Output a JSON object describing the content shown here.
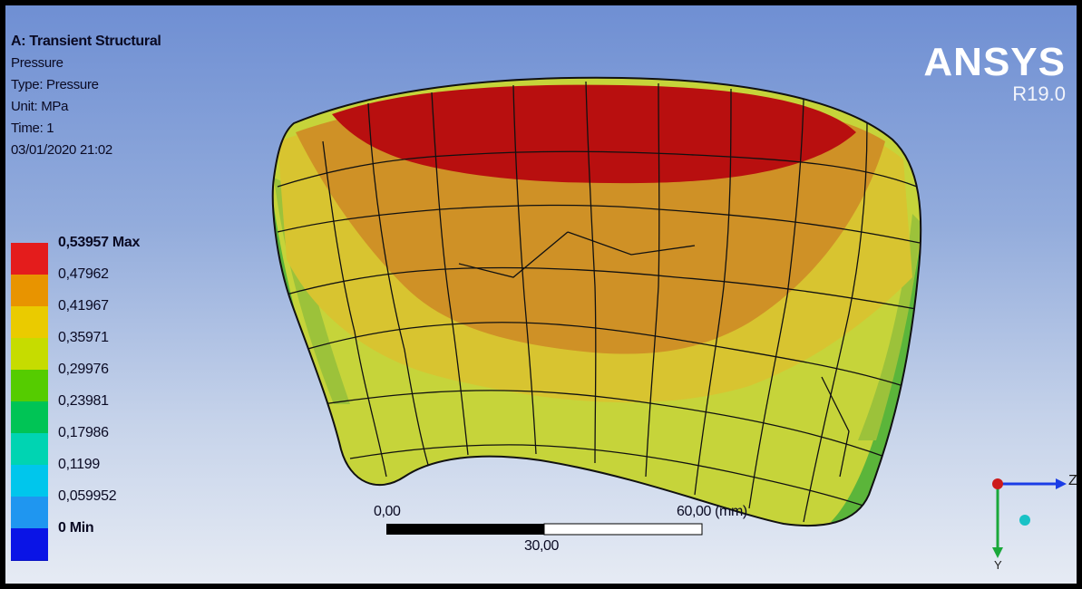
{
  "header": {
    "title": "A: Transient Structural",
    "result_name": "Pressure",
    "type": "Type: Pressure",
    "unit": "Unit: MPa",
    "time": "Time: 1",
    "timestamp": "03/01/2020 21:02"
  },
  "brand": {
    "name": "ANSYS",
    "version": "R19.0"
  },
  "legend": {
    "entries": [
      {
        "label": "0,53957 Max",
        "color": "#e41c1c",
        "bold": true
      },
      {
        "label": "0,47962",
        "color": "#e89400",
        "bold": false
      },
      {
        "label": "0,41967",
        "color": "#eacb00",
        "bold": false
      },
      {
        "label": "0,35971",
        "color": "#c6dc00",
        "bold": false
      },
      {
        "label": "0,29976",
        "color": "#55cc00",
        "bold": false
      },
      {
        "label": "0,23981",
        "color": "#00c455",
        "bold": false
      },
      {
        "label": "0,17986",
        "color": "#00d4b2",
        "bold": false
      },
      {
        "label": "0,1199",
        "color": "#00c6ec",
        "bold": false
      },
      {
        "label": "0,059952",
        "color": "#1f96f0",
        "bold": false
      },
      {
        "label": "0 Min",
        "color": "#0a14e6",
        "bold": true
      }
    ]
  },
  "scale_bar": {
    "left": "0,00",
    "right": "60,00 (mm)",
    "middle": "30,00"
  },
  "triad": {
    "z": "Z",
    "y": "Y"
  }
}
